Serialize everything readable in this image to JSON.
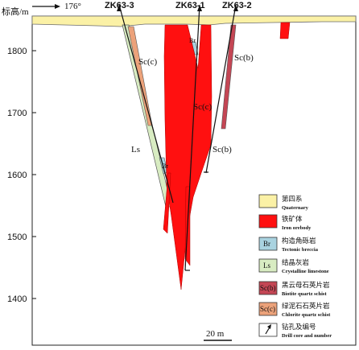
{
  "header": {
    "axis_title": "标高/m",
    "azimuth": "176°"
  },
  "y_axis": {
    "ticks": [
      "1800",
      "1700",
      "1600",
      "1500",
      "1400"
    ]
  },
  "drill_holes": [
    {
      "id": "ZK63-3"
    },
    {
      "id": "ZK63-1"
    },
    {
      "id": "ZK63-2"
    }
  ],
  "map_labels": {
    "sc_c_left": "Sc(c)",
    "sc_c_right": "Sc(c)",
    "sc_b_top": "Sc(b)",
    "sc_b_bottom": "Sc(b)",
    "ls": "Ls",
    "br_top": "Br",
    "br_mid": "Br"
  },
  "scale_bar": "20 m",
  "legend": [
    {
      "symbol": "",
      "cn": "第四系",
      "en": "Quaternary",
      "fill": "#fbf1a6"
    },
    {
      "symbol": "",
      "cn": "铁矿体",
      "en": "Iron orebody",
      "fill": "#ff1010"
    },
    {
      "symbol": "Br",
      "cn": "构造角砾岩",
      "en": "Tectonic breccia",
      "fill": "#a9d3e0"
    },
    {
      "symbol": "Ls",
      "cn": "结晶灰岩",
      "en": "Crystalline limestone",
      "fill": "#d8ecc2"
    },
    {
      "symbol": "Sc(b)",
      "cn": "黑云母石英片岩",
      "en": "Biotite quartz schist",
      "fill": "#c44654"
    },
    {
      "symbol": "Sc(c)",
      "cn": "绿泥石石英片岩",
      "en": "Chlorite quartz schist",
      "fill": "#eca27a"
    },
    {
      "symbol": "arrow",
      "cn": "钻孔及编号",
      "en": "Drill core and number",
      "fill": "#ffffff"
    }
  ],
  "colors": {
    "quaternary": "#fbf1a6",
    "ore": "#ff1010",
    "breccia": "#a9d3e0",
    "limestone": "#d8ecc2",
    "biotite_schist": "#c44654",
    "chlorite_schist": "#eca27a"
  }
}
